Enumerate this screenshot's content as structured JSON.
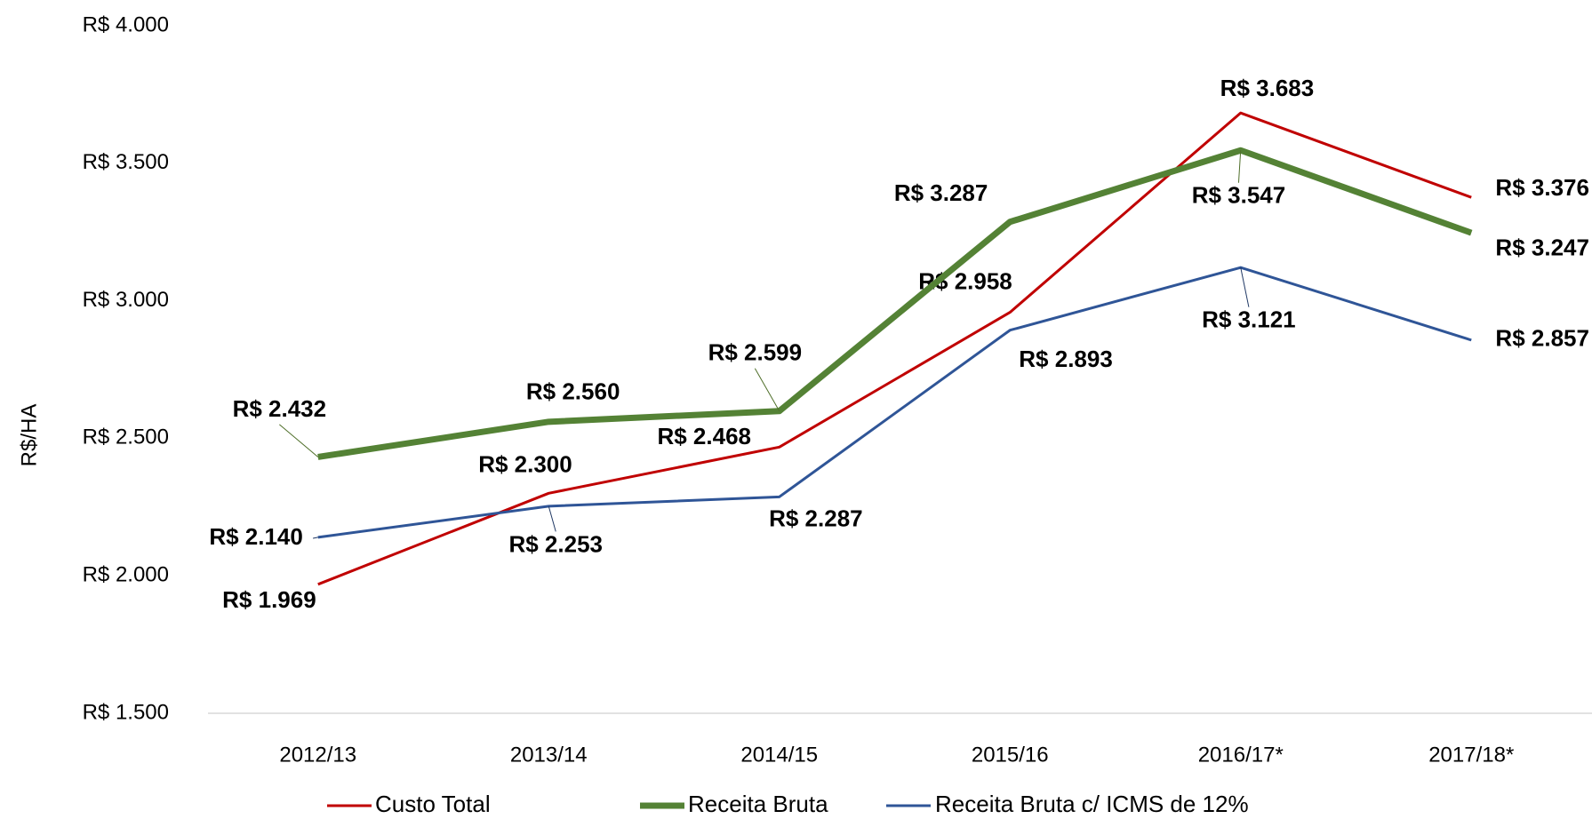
{
  "chart_data": {
    "type": "line",
    "y_label": "R$/HA",
    "categories": [
      "2012/13",
      "2013/14",
      "2014/15",
      "2015/16",
      "2016/17*",
      "2017/18*"
    ],
    "series": [
      {
        "name": "Custo Total",
        "color": "#c00000",
        "label_color": "#c00000",
        "values": [
          1969,
          2300,
          2468,
          2958,
          3683,
          3376
        ],
        "value_labels": [
          "R$ 1.969",
          "R$ 2.300",
          "R$ 2.468",
          "R$ 2.958",
          "R$ 3.683",
          "R$ 3.376"
        ]
      },
      {
        "name": "Receita Bruta",
        "color": "#548235",
        "label_color": "#4f6f2a",
        "values": [
          2432,
          2560,
          2599,
          3287,
          3547,
          3247
        ],
        "value_labels": [
          "R$ 2.432",
          "R$ 2.560",
          "R$ 2.599",
          "R$ 3.287",
          "R$ 3.547",
          "R$ 3.247"
        ]
      },
      {
        "name": "Receita Bruta c/ ICMS de 12%",
        "color": "#2f5597",
        "label_color": "#1f3864",
        "values": [
          2140,
          2253,
          2287,
          2893,
          3121,
          2857
        ],
        "value_labels": [
          "R$ 2.140",
          "R$ 2.253",
          "R$ 2.287",
          "R$ 2.893",
          "R$ 3.121",
          "R$ 2.857"
        ]
      }
    ],
    "ylim": [
      1500,
      4000
    ],
    "yticks": [
      {
        "value": 1500,
        "label": "R$ 1.500"
      },
      {
        "value": 2000,
        "label": "R$ 2.000"
      },
      {
        "value": 2500,
        "label": "R$ 2.500"
      },
      {
        "value": 3000,
        "label": "R$ 3.000"
      },
      {
        "value": 3500,
        "label": "R$ 3.500"
      },
      {
        "value": 4000,
        "label": "R$ 4.000"
      }
    ],
    "grid": false,
    "legend": "bottom"
  }
}
